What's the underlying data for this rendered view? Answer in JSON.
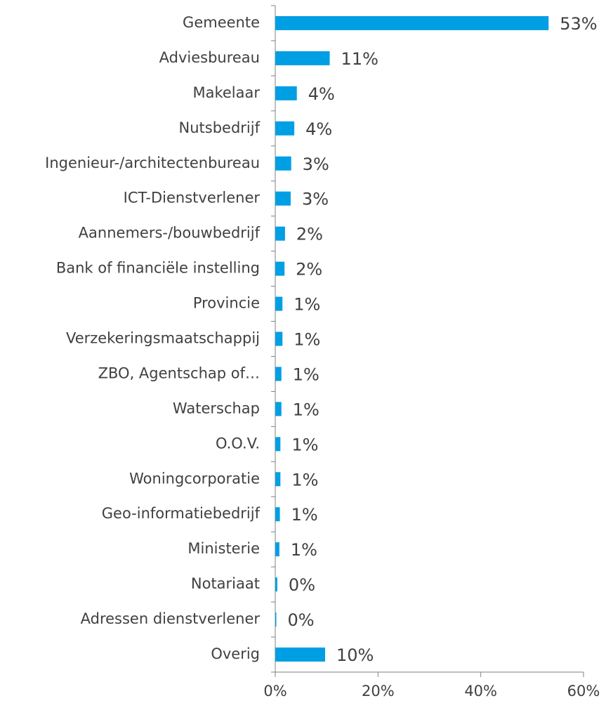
{
  "chart_data": {
    "type": "bar",
    "orientation": "horizontal",
    "categories": [
      "Gemeente",
      "Adviesbureau",
      "Makelaar",
      "Nutsbedrijf",
      "Ingenieur-/architectenbureau",
      "ICT-Dienstverlener",
      "Aannemers-/bouwbedrijf",
      "Bank of financiële instelling",
      "Provincie",
      "Verzekeringsmaatschappij",
      "ZBO, Agentschap of…",
      "Waterschap",
      "O.O.V.",
      "Woningcorporatie",
      "Geo-informatiebedrijf",
      "Ministerie",
      "Notariaat",
      "Adressen dienstverlener",
      "Overig"
    ],
    "values": [
      53.2,
      10.6,
      4.2,
      3.7,
      3.1,
      3.0,
      1.9,
      1.8,
      1.4,
      1.4,
      1.2,
      1.2,
      1.0,
      1.0,
      0.9,
      0.8,
      0.4,
      0.2,
      9.7
    ],
    "value_labels": [
      "53%",
      "11%",
      "4%",
      "4%",
      "3%",
      "3%",
      "2%",
      "2%",
      "1%",
      "1%",
      "1%",
      "1%",
      "1%",
      "1%",
      "1%",
      "1%",
      "0%",
      "0%",
      "10%"
    ],
    "color": "#009fe3",
    "xlim": [
      0,
      60
    ],
    "xticks": [
      {
        "value": 0,
        "label": "0%"
      },
      {
        "value": 20,
        "label": "20%"
      },
      {
        "value": 40,
        "label": "40%"
      },
      {
        "value": 60,
        "label": "60%"
      }
    ]
  }
}
